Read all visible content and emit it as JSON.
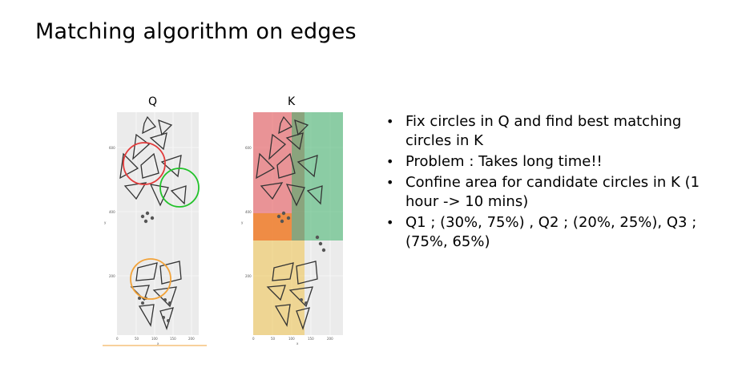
{
  "slide": {
    "title": "Matching algorithm on edges"
  },
  "panels": {
    "q_label": "Q",
    "k_label": "K",
    "q_axis": {
      "y_ticks": [
        "600",
        "400",
        "200"
      ],
      "x_ticks": [
        "0",
        "50",
        "100",
        "150",
        "200"
      ],
      "y_label": "y",
      "x_label": "x"
    },
    "k_axis": {
      "y_ticks": [
        "600",
        "400",
        "200"
      ],
      "x_ticks": [
        "0",
        "50",
        "100",
        "150",
        "200"
      ],
      "y_label": "y",
      "x_label": "x"
    },
    "colors": {
      "red": "#e8585e",
      "green": "#3db36a",
      "orange": "#f08a2a",
      "yellow": "#f1c24a",
      "circle_orange": "#f2a33a",
      "circle_green": "#22c22a",
      "circle_red": "#e23b3b",
      "plot_bg": "#ebebeb"
    }
  },
  "bullets": [
    "Fix circles in Q and find best matching circles in K",
    "Problem : Takes long time!!",
    "Confine area for candidate circles in K (1 hour -> 10 mins)",
    "Q1 ; (30%, 75%) , Q2 ; (20%, 25%), Q3 ; (75%, 65%)"
  ]
}
